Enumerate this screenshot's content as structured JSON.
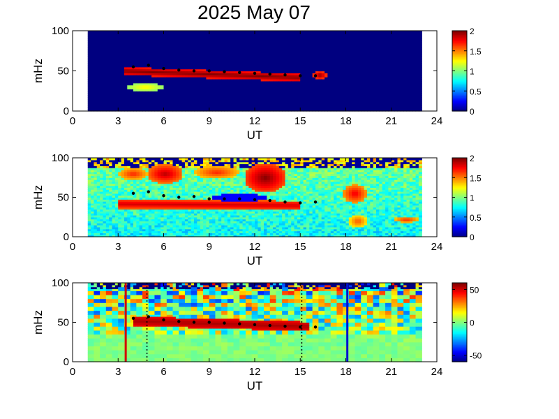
{
  "title": "2025 May 07",
  "chart_data": [
    {
      "type": "heatmap",
      "panel": "top",
      "xlabel": "UT",
      "ylabel": "mHz",
      "xlim": [
        0,
        24
      ],
      "ylim": [
        0,
        100
      ],
      "xticks": [
        "0",
        "3",
        "6",
        "9",
        "12",
        "15",
        "18",
        "21",
        "24"
      ],
      "yticks": [
        "0",
        "50",
        "100"
      ],
      "data_x_range": [
        1,
        23
      ],
      "colorbar": {
        "min": 0,
        "max": 2,
        "ticks": [
          "0",
          "0.5",
          "1",
          "1.5",
          "2"
        ]
      },
      "background_level": 0,
      "features": [
        {
          "kind": "band",
          "level": 2,
          "x_start": 3.5,
          "x_end": 15.0,
          "y_start_center": 50,
          "y_end_center": 42,
          "width": 10
        },
        {
          "kind": "patch",
          "level": 2,
          "x": 16.3,
          "y": 45,
          "width_x": 0.5,
          "width_y": 5
        },
        {
          "kind": "patch",
          "level": 1.3,
          "x": 4.8,
          "y": 30,
          "width_x": 1.2,
          "width_y": 5
        }
      ],
      "peak_track": [
        [
          4,
          55
        ],
        [
          5,
          57
        ],
        [
          6,
          53
        ],
        [
          7,
          51
        ],
        [
          8,
          50
        ],
        [
          9,
          50
        ],
        [
          10,
          49
        ],
        [
          11,
          48
        ],
        [
          12,
          47
        ],
        [
          13,
          46
        ],
        [
          14,
          45
        ],
        [
          15,
          44
        ],
        [
          16,
          44
        ]
      ]
    },
    {
      "type": "heatmap",
      "panel": "middle",
      "xlabel": "UT",
      "ylabel": "mHz",
      "xlim": [
        0,
        24
      ],
      "ylim": [
        0,
        100
      ],
      "xticks": [
        "0",
        "3",
        "6",
        "9",
        "12",
        "15",
        "18",
        "21",
        "24"
      ],
      "yticks": [
        "0",
        "50",
        "100"
      ],
      "data_x_range": [
        1,
        23
      ],
      "colorbar": {
        "min": 0,
        "max": 2,
        "ticks": [
          "0",
          "0.5",
          "1",
          "1.5",
          "2"
        ]
      },
      "background_level": 0.85,
      "features": [
        {
          "kind": "band",
          "level": 1.85,
          "x_start": 3.0,
          "x_end": 15.0,
          "y_start_center": 42,
          "y_end_center": 40,
          "width": 12
        },
        {
          "kind": "patch",
          "level": 1.9,
          "x": 6.1,
          "y": 80,
          "width_x": 1.2,
          "width_y": 12
        },
        {
          "kind": "patch",
          "level": 2,
          "x": 12.7,
          "y": 75,
          "width_x": 1.4,
          "width_y": 18
        },
        {
          "kind": "patch",
          "level": 1.7,
          "x": 4.0,
          "y": 80,
          "width_x": 1.0,
          "width_y": 8
        },
        {
          "kind": "patch",
          "level": 1.7,
          "x": 9.5,
          "y": 82,
          "width_x": 1.5,
          "width_y": 8
        },
        {
          "kind": "patch",
          "level": 1.8,
          "x": 18.6,
          "y": 55,
          "width_x": 0.8,
          "width_y": 12
        },
        {
          "kind": "patch",
          "level": 1.6,
          "x": 18.8,
          "y": 20,
          "width_x": 0.6,
          "width_y": 8
        },
        {
          "kind": "patch",
          "level": 1.7,
          "x": 22.0,
          "y": 22,
          "width_x": 0.8,
          "width_y": 4
        },
        {
          "kind": "patch",
          "level": 0.25,
          "x": 11.0,
          "y": 50,
          "width_x": 1.8,
          "width_y": 5
        }
      ],
      "peak_track": [
        [
          4,
          55
        ],
        [
          5,
          57
        ],
        [
          6,
          52
        ],
        [
          7,
          50
        ],
        [
          8,
          51
        ],
        [
          9,
          48
        ],
        [
          10,
          48
        ],
        [
          11,
          48
        ],
        [
          12,
          47
        ],
        [
          13,
          46
        ],
        [
          14,
          44
        ],
        [
          15,
          43
        ],
        [
          16,
          44
        ]
      ]
    },
    {
      "type": "heatmap",
      "panel": "bottom",
      "xlabel": "UT",
      "ylabel": "mHz",
      "xlim": [
        0,
        24
      ],
      "ylim": [
        0,
        100
      ],
      "xticks": [
        "0",
        "3",
        "6",
        "9",
        "12",
        "15",
        "18",
        "21",
        "24"
      ],
      "yticks": [
        "0",
        "50",
        "100"
      ],
      "data_x_range": [
        1,
        23
      ],
      "colorbar": {
        "min": -60,
        "max": 60,
        "ticks": [
          "-50",
          "0",
          "50"
        ]
      },
      "background_level": 0,
      "features": [
        {
          "kind": "band",
          "level": 55,
          "x_start": 4.0,
          "x_end": 15.5,
          "y_start_center": 52,
          "y_end_center": 45,
          "width": 12
        }
      ],
      "vertical_lines": [
        {
          "x": 3.5,
          "color": "#d20000",
          "style": "solid"
        },
        {
          "x": 4.9,
          "color": "#000000",
          "style": "dotted"
        },
        {
          "x": 15.1,
          "color": "#000000",
          "style": "dotted"
        },
        {
          "x": 18.1,
          "color": "#0010d0",
          "style": "solid"
        }
      ],
      "peak_track": [
        [
          4,
          55
        ],
        [
          5,
          57
        ],
        [
          6,
          53
        ],
        [
          7,
          51
        ],
        [
          8,
          50
        ],
        [
          9,
          50
        ],
        [
          10,
          49
        ],
        [
          11,
          48
        ],
        [
          12,
          47
        ],
        [
          13,
          46
        ],
        [
          14,
          45
        ],
        [
          15,
          44
        ],
        [
          16,
          44
        ]
      ]
    }
  ]
}
